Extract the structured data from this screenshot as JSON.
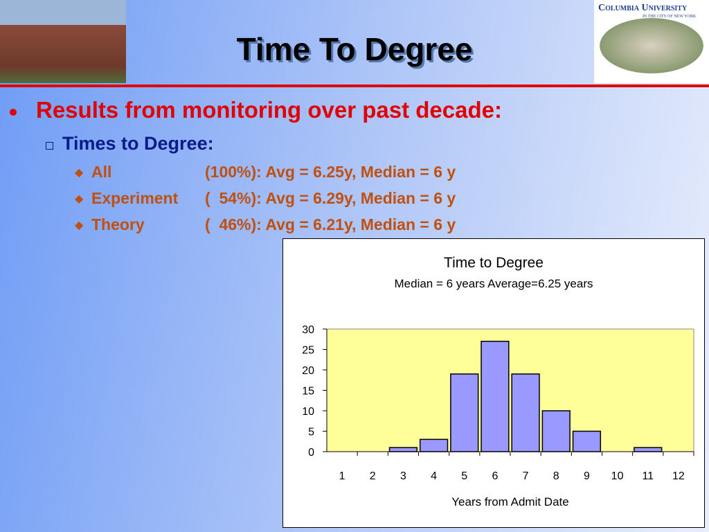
{
  "slide": {
    "title": "Time To Degree",
    "logo": {
      "name": "Columbia University",
      "tagline": "in the city of new york"
    },
    "bullet": "Results from monitoring over past decade:",
    "sub_bullet": "Times to Degree:",
    "items": [
      {
        "group": "All",
        "stats": "(100%): Avg = 6.25y, Median = 6 y"
      },
      {
        "group": "Experiment",
        "stats": "(  54%): Avg = 6.29y, Median = 6 y"
      },
      {
        "group": "Theory",
        "stats": "(  46%): Avg = 6.21y, Median = 6 y"
      }
    ]
  },
  "chart_data": {
    "type": "bar",
    "title": "Time to Degree",
    "subtitle": "Median = 6 years   Average=6.25 years",
    "x_label": "Years from Admit Date",
    "categories": [
      "1",
      "2",
      "3",
      "4",
      "5",
      "6",
      "7",
      "8",
      "9",
      "10",
      "11",
      "12"
    ],
    "values": [
      0,
      0,
      1,
      3,
      19,
      27,
      19,
      10,
      5,
      0,
      1,
      0
    ],
    "color": "#9999ff",
    "plot_background": "#ffff99",
    "ylim": [
      0,
      30
    ],
    "yticks": [
      0,
      5,
      10,
      15,
      20,
      25,
      30
    ]
  }
}
